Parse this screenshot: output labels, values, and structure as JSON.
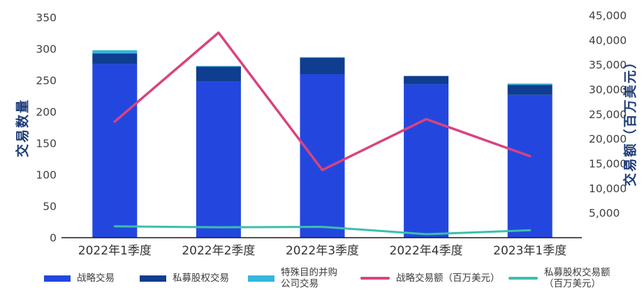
{
  "chart_data": {
    "type": "bar",
    "subtype": "stacked-bar-with-lines",
    "title": "",
    "categories": [
      "2022年1季度",
      "2022年2季度",
      "2022年3季度",
      "2022年4季度",
      "2023年1季度"
    ],
    "bar_series": [
      {
        "name": "战略交易",
        "color": "#2347DE",
        "values": [
          276,
          248,
          260,
          244,
          227
        ]
      },
      {
        "name": "私募股权交易",
        "color": "#0F3D8F",
        "values": [
          17,
          24,
          26,
          13,
          16
        ]
      },
      {
        "name": "特殊目的并购公司交易",
        "color": "#35B6DD",
        "values": [
          5,
          1,
          1,
          0,
          2
        ]
      }
    ],
    "line_series": [
      {
        "name": "战略交易额（百万美元）",
        "color": "#D8437F",
        "axis": "right",
        "values": [
          23500,
          41500,
          13700,
          24000,
          16500
        ]
      },
      {
        "name": "私募股权交易额（百万美元）",
        "color": "#3BBFAD",
        "axis": "right",
        "values": [
          2300,
          2100,
          2200,
          700,
          1500
        ]
      }
    ],
    "left_axis": {
      "title": "交易数量",
      "min": 0,
      "max": 350,
      "ticks": [
        0,
        50,
        100,
        150,
        200,
        250,
        300,
        350
      ]
    },
    "right_axis": {
      "title": "交易额（百万美元）",
      "min": 0,
      "max": 45000,
      "ticks": [
        5000,
        10000,
        15000,
        20000,
        25000,
        30000,
        35000,
        40000,
        45000
      ]
    },
    "grid": false,
    "legend_position": "bottom"
  },
  "axis_titles": {
    "left": "交易数量",
    "right": "交易额（百万美元）"
  },
  "legend": {
    "items": [
      {
        "label": "战略交易",
        "label2": "",
        "type": "bar",
        "color": "#2347DE"
      },
      {
        "label": "私募股权交易",
        "label2": "",
        "type": "bar",
        "color": "#0F3D8F"
      },
      {
        "label": "特殊目的并购",
        "label2": "公司交易",
        "type": "bar",
        "color": "#35B6DD"
      },
      {
        "label": "战略交易额（百万美元）",
        "label2": "",
        "type": "line",
        "color": "#D8437F"
      },
      {
        "label": "私募股权交易额",
        "label2": "（百万美元）",
        "type": "line",
        "color": "#3BBFAD"
      }
    ]
  },
  "colors": {
    "bar_strategic": "#2347DE",
    "bar_private_equity": "#0F3D8F",
    "bar_spac": "#35B6DD",
    "line_strategic_value": "#D8437F",
    "line_pe_value": "#3BBFAD",
    "axis_title": "#1F3C78",
    "tick_label": "#404040",
    "axis_line": "#1a1a1a"
  }
}
